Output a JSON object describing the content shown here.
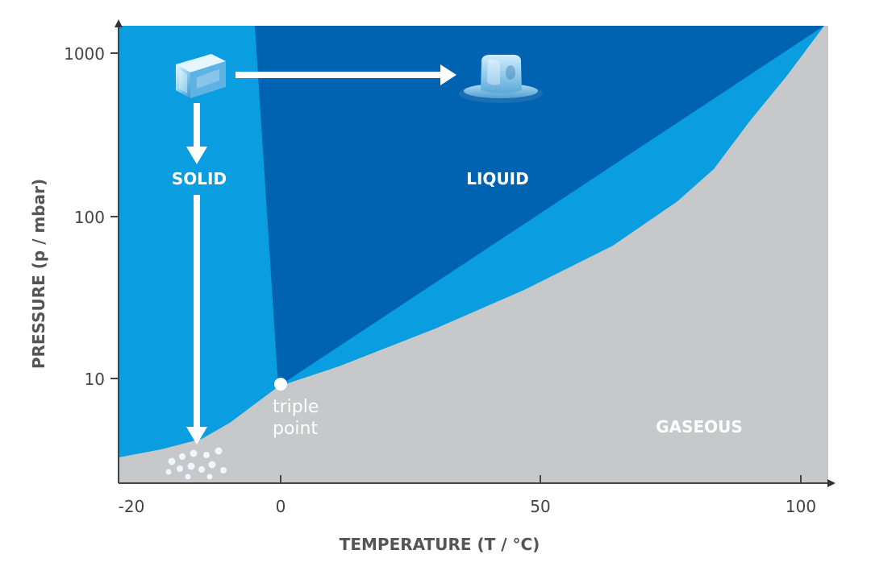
{
  "colors": {
    "solid": "#0a9ee0",
    "liquid": "#0063b2",
    "gaseous": "#c7c8ca",
    "axis": "#444444",
    "label": "#ffffff"
  },
  "regions": {
    "solid": "SOLID",
    "liquid": "LIQUID",
    "gaseous": "GASEOUS"
  },
  "triple_point": {
    "line1": "triple",
    "line2": "point",
    "temperature": 0,
    "pressure": 6.1
  },
  "axes": {
    "x": {
      "title": "TEMPERATURE (T / °C)",
      "ticks": [
        "-20",
        "0",
        "50",
        "100"
      ],
      "range": [
        -20,
        105
      ]
    },
    "y": {
      "title": "PRESSURE (p / mbar)",
      "ticks": [
        "10",
        "100",
        "1000"
      ],
      "scale": "log"
    }
  },
  "icons": {
    "ice_cube": "ice-cube-icon",
    "melting_ice": "melting-ice-icon",
    "vapor": "vapor-particles-icon"
  }
}
